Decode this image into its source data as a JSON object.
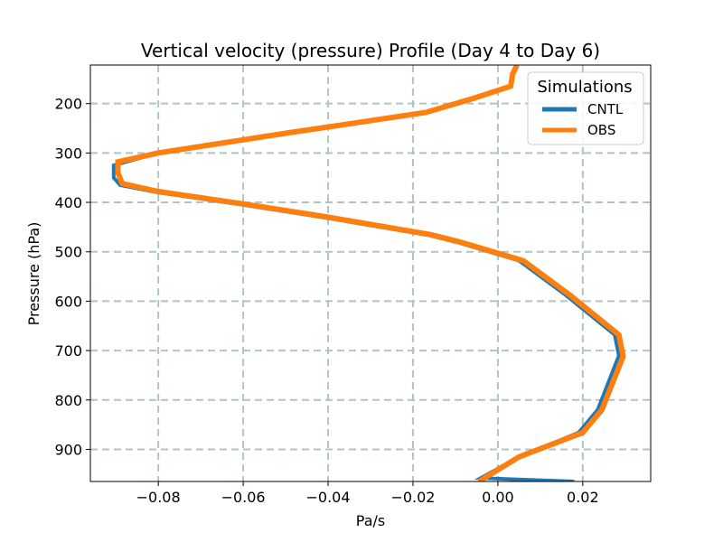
{
  "chart_data": {
    "type": "line",
    "title": "Vertical velocity (pressure) Profile (Day 4 to Day 6)",
    "xlabel": "Pa/s",
    "ylabel": "Pressure (hPa)",
    "xlim": [
      -0.096,
      0.036
    ],
    "ylim": [
      965,
      122
    ],
    "y_inverted": true,
    "x_ticks": [
      -0.08,
      -0.06,
      -0.04,
      -0.02,
      0.0,
      0.02
    ],
    "x_tick_labels": [
      "−0.08",
      "−0.06",
      "−0.04",
      "−0.02",
      "0.00",
      "0.02"
    ],
    "y_ticks": [
      200,
      300,
      400,
      500,
      600,
      700,
      800,
      900
    ],
    "y_tick_labels": [
      "200",
      "300",
      "400",
      "500",
      "600",
      "700",
      "800",
      "900"
    ],
    "grid": true,
    "legend": {
      "title": "Simulations",
      "placement": "top-right"
    },
    "series": [
      {
        "name": "CNTL",
        "color": "#1f77b4",
        "points": [
          [
            0.0045,
            122
          ],
          [
            0.0035,
            140
          ],
          [
            0.003,
            165
          ],
          [
            -0.006,
            190
          ],
          [
            -0.017,
            218
          ],
          [
            -0.05,
            260
          ],
          [
            -0.08,
            300
          ],
          [
            -0.0905,
            325
          ],
          [
            -0.0905,
            350
          ],
          [
            -0.089,
            365
          ],
          [
            -0.08,
            380
          ],
          [
            -0.06,
            405
          ],
          [
            -0.04,
            432
          ],
          [
            -0.016,
            467
          ],
          [
            -0.009,
            482
          ],
          [
            0.005,
            518
          ],
          [
            0.016,
            588
          ],
          [
            0.0275,
            668
          ],
          [
            0.0285,
            710
          ],
          [
            0.0235,
            820
          ],
          [
            0.019,
            866
          ],
          [
            0.005,
            915
          ],
          [
            -0.004,
            958
          ],
          [
            0.018,
            965
          ]
        ]
      },
      {
        "name": "OBS",
        "color": "#ff7f0e",
        "points": [
          [
            0.0045,
            122
          ],
          [
            0.0035,
            140
          ],
          [
            0.003,
            165
          ],
          [
            -0.006,
            190
          ],
          [
            -0.017,
            218
          ],
          [
            -0.05,
            260
          ],
          [
            -0.08,
            300
          ],
          [
            -0.0895,
            318
          ],
          [
            -0.0895,
            340
          ],
          [
            -0.0885,
            362
          ],
          [
            -0.08,
            378
          ],
          [
            -0.06,
            403
          ],
          [
            -0.04,
            430
          ],
          [
            -0.016,
            465
          ],
          [
            -0.009,
            480
          ],
          [
            0.006,
            518
          ],
          [
            0.017,
            588
          ],
          [
            0.0285,
            668
          ],
          [
            0.0295,
            712
          ],
          [
            0.0245,
            820
          ],
          [
            0.02,
            866
          ],
          [
            0.005,
            915
          ],
          [
            -0.0045,
            965
          ]
        ]
      }
    ]
  }
}
